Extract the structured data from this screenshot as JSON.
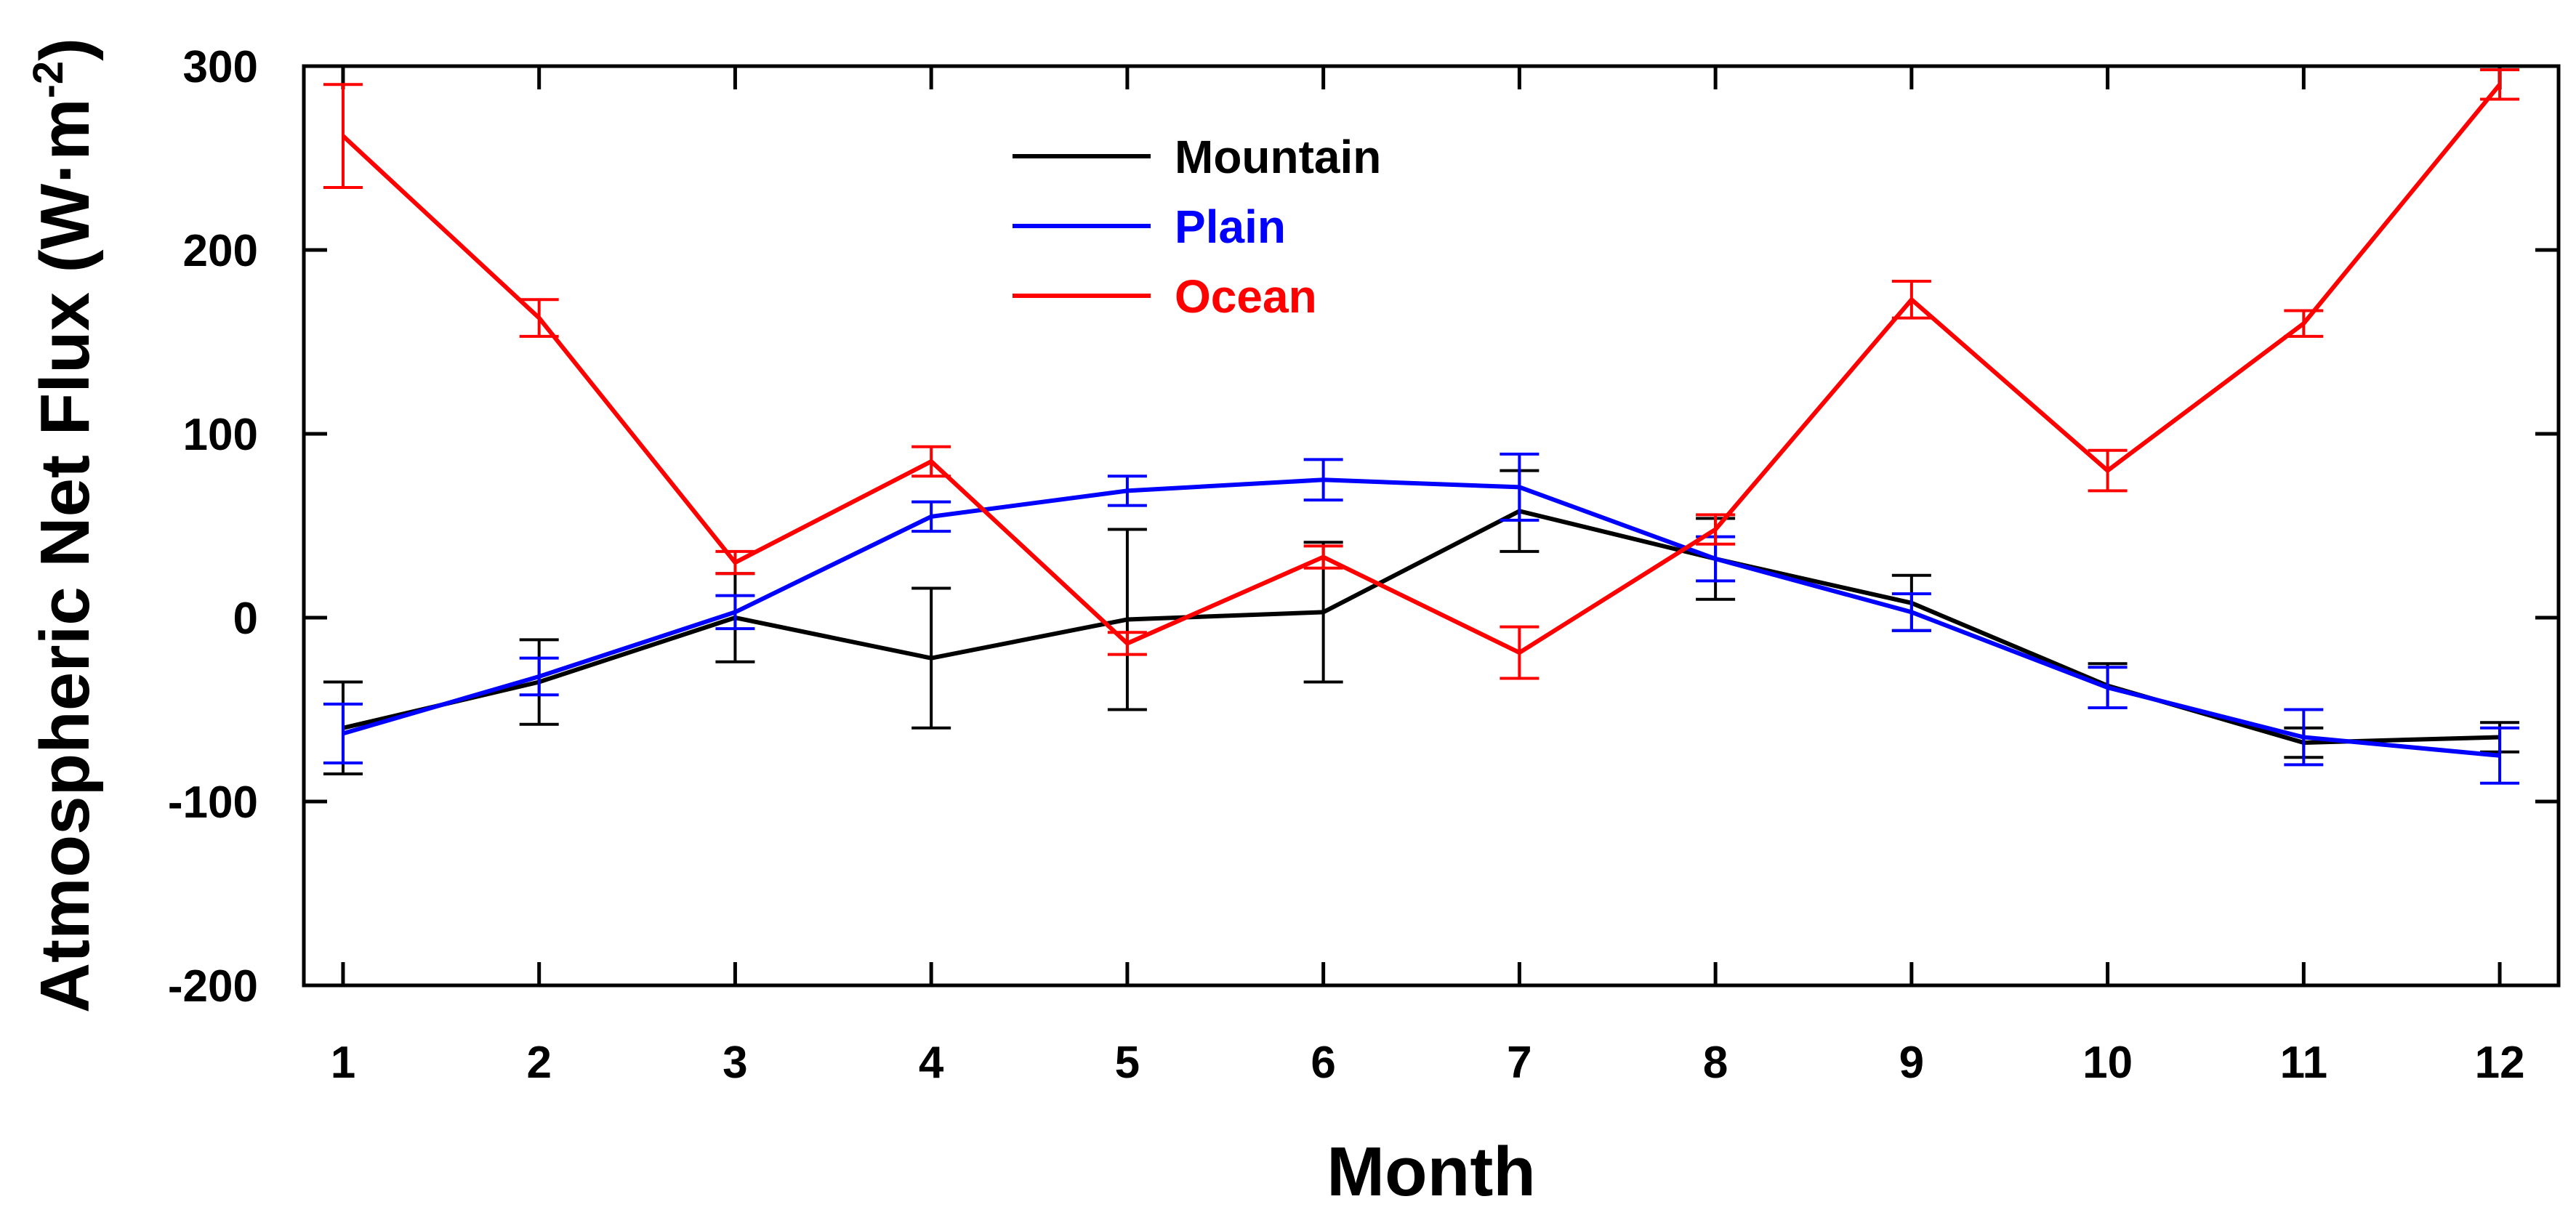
{
  "chart_data": {
    "type": "line",
    "title": "",
    "xlabel": "Month",
    "ylabel_main": "Atmospheric Net Flux (W",
    "ylabel_dot": "·",
    "ylabel_unit": "m",
    "ylabel_exp": "-2",
    "ylabel_close": ")",
    "x": [
      1,
      2,
      3,
      4,
      5,
      6,
      7,
      8,
      9,
      10,
      11,
      12
    ],
    "x_tick_labels": [
      "1",
      "2",
      "3",
      "4",
      "5",
      "6",
      "7",
      "8",
      "9",
      "10",
      "11",
      "12"
    ],
    "xlim": [
      0.8,
      12.3
    ],
    "ylim": [
      -200,
      300
    ],
    "y_ticks": [
      -200,
      -100,
      0,
      100,
      200,
      300
    ],
    "y_tick_labels": [
      "-200",
      "-100",
      "0",
      "100",
      "200",
      "300"
    ],
    "grid": false,
    "legend_position": "top-center",
    "series": [
      {
        "name": "Mountain",
        "color": "#000000",
        "values": [
          -60,
          -35,
          0,
          -22,
          -1,
          3,
          58,
          32,
          8,
          -37,
          -68,
          -65
        ],
        "error": [
          25,
          23,
          24,
          38,
          49,
          38,
          22,
          22,
          15,
          12,
          8,
          8
        ]
      },
      {
        "name": "Plain",
        "color": "#0000ff",
        "values": [
          -63,
          -32,
          3,
          55,
          69,
          75,
          71,
          32,
          3,
          -38,
          -65,
          -75
        ],
        "error": [
          16,
          10,
          9,
          8,
          8,
          11,
          18,
          12,
          10,
          11,
          15,
          15
        ]
      },
      {
        "name": "Ocean",
        "color": "#ff0000",
        "values": [
          262,
          163,
          30,
          85,
          -14,
          33,
          -19,
          48,
          173,
          80,
          160,
          290
        ],
        "error": [
          28,
          10,
          6,
          8,
          6,
          6,
          14,
          8,
          10,
          11,
          7,
          8
        ]
      }
    ]
  }
}
